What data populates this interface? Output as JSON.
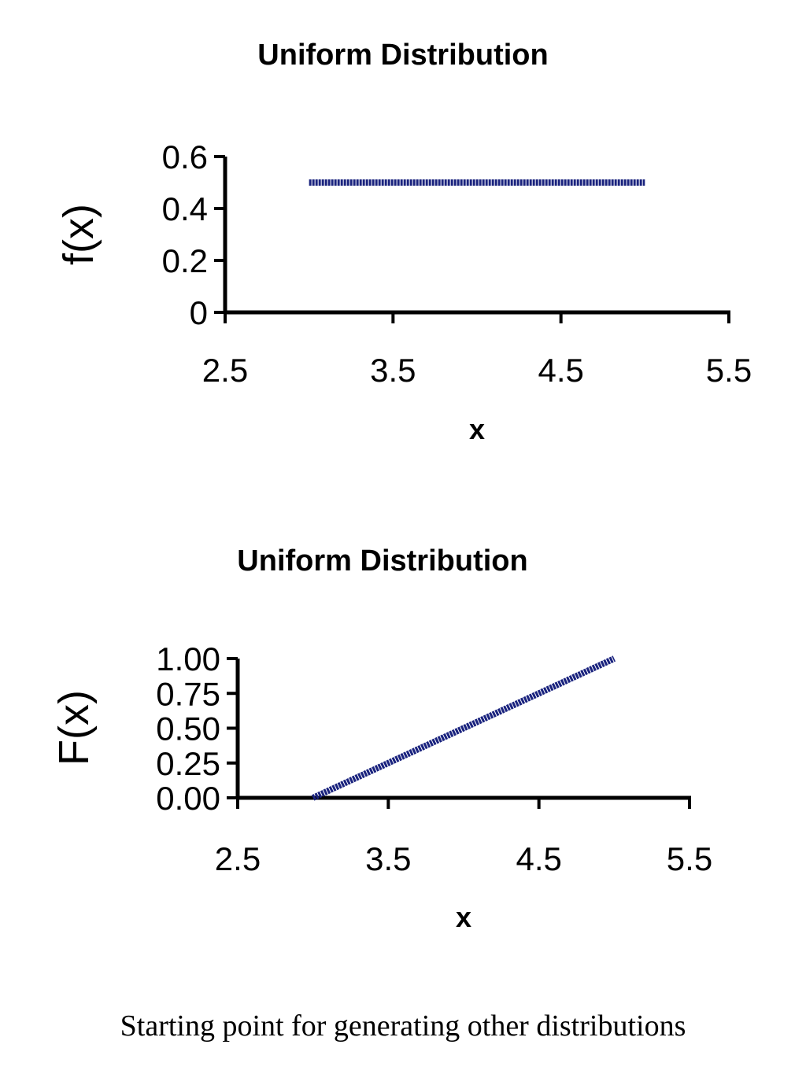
{
  "chart_data": [
    {
      "type": "line",
      "title": "Uniform Distribution",
      "xlabel": "x",
      "ylabel": "f(x)",
      "xlim": [
        2.5,
        5.5
      ],
      "ylim": [
        0,
        0.6
      ],
      "x_ticks": [
        "2.5",
        "3.5",
        "4.5",
        "5.5"
      ],
      "y_ticks": [
        "0",
        "0.2",
        "0.4",
        "0.6"
      ],
      "grid": false,
      "legend": "none",
      "series": [
        {
          "x": [
            3.0,
            5.0
          ],
          "y": [
            0.5,
            0.5
          ],
          "color": "#1a237e"
        }
      ]
    },
    {
      "type": "line",
      "title": "Uniform Distribution",
      "xlabel": "x",
      "ylabel": "F(x)",
      "xlim": [
        2.5,
        5.5
      ],
      "ylim": [
        0,
        1
      ],
      "x_ticks": [
        "2.5",
        "3.5",
        "4.5",
        "5.5"
      ],
      "y_ticks": [
        "0.00",
        "0.25",
        "0.50",
        "0.75",
        "1.00"
      ],
      "grid": false,
      "legend": "none",
      "series": [
        {
          "x": [
            3.0,
            5.0
          ],
          "y": [
            0.0,
            1.0
          ],
          "color": "#1a237e"
        }
      ]
    }
  ],
  "caption": "Starting point for generating other distributions"
}
